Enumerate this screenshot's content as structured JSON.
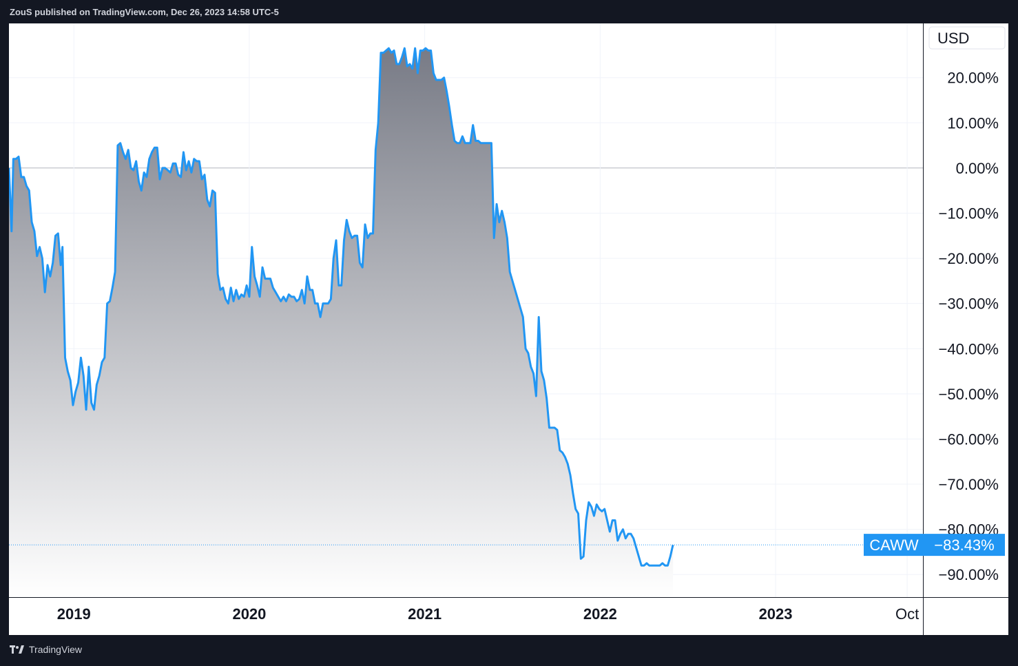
{
  "header": {
    "published_text": "ZouS published on TradingView.com, Dec 26, 2023 14:58 UTC-5"
  },
  "footer": {
    "brand": "TradingView",
    "logo_icon": "tradingview-logo-icon"
  },
  "colors": {
    "background": "#131722",
    "plot_bg": "#ffffff",
    "line": "#2196f3",
    "grid": "#f0f3fa",
    "zero_line": "#b2b5be",
    "label_bg": "#2196f3",
    "label_text": "#ffffff",
    "area_top": "#787b86",
    "area_bottom": "#ffffff"
  },
  "chart_data": {
    "type": "area",
    "title": "",
    "currency_label": "USD",
    "symbol": "CAWW",
    "last_value_label": "−83.43%",
    "last_value": -83.43,
    "ylim": [
      -95,
      32
    ],
    "y_ticks": [
      {
        "value": 20,
        "label": "20.00%"
      },
      {
        "value": 10,
        "label": "10.00%"
      },
      {
        "value": 0,
        "label": "0.00%"
      },
      {
        "value": -10,
        "label": "−10.00%"
      },
      {
        "value": -20,
        "label": "−20.00%"
      },
      {
        "value": -30,
        "label": "−30.00%"
      },
      {
        "value": -40,
        "label": "−40.00%"
      },
      {
        "value": -50,
        "label": "−50.00%"
      },
      {
        "value": -60,
        "label": "−60.00%"
      },
      {
        "value": -70,
        "label": "−70.00%"
      },
      {
        "value": -80,
        "label": "−80.00%"
      },
      {
        "value": -90,
        "label": "−90.00%"
      }
    ],
    "xlim": [
      2018.63,
      2023.84
    ],
    "x_ticks": [
      {
        "value": 2019.0,
        "label": "2019",
        "bold": true
      },
      {
        "value": 2020.0,
        "label": "2020",
        "bold": true
      },
      {
        "value": 2021.0,
        "label": "2021",
        "bold": true
      },
      {
        "value": 2022.0,
        "label": "2022",
        "bold": true
      },
      {
        "value": 2023.0,
        "label": "2023",
        "bold": true
      },
      {
        "value": 2023.75,
        "label": "Oct",
        "bold": false
      }
    ],
    "grid": true,
    "series": [
      {
        "points": [
          [
            2018.63,
            0
          ],
          [
            2018.645,
            -14
          ],
          [
            2018.655,
            2
          ],
          [
            2018.67,
            2
          ],
          [
            2018.685,
            2.5
          ],
          [
            2018.7,
            -2
          ],
          [
            2018.715,
            -2
          ],
          [
            2018.73,
            -4
          ],
          [
            2018.745,
            -5
          ],
          [
            2018.76,
            -12
          ],
          [
            2018.775,
            -14
          ],
          [
            2018.79,
            -19.5
          ],
          [
            2018.805,
            -17.5
          ],
          [
            2018.82,
            -20
          ],
          [
            2018.835,
            -27.5
          ],
          [
            2018.85,
            -21.5
          ],
          [
            2018.865,
            -24
          ],
          [
            2018.88,
            -21
          ],
          [
            2018.895,
            -15
          ],
          [
            2018.91,
            -14.5
          ],
          [
            2018.925,
            -21.5
          ],
          [
            2018.935,
            -17.5
          ],
          [
            2018.95,
            -42
          ],
          [
            2018.965,
            -45
          ],
          [
            2018.98,
            -47
          ],
          [
            2018.995,
            -52.5
          ],
          [
            2019.01,
            -49.5
          ],
          [
            2019.025,
            -47.5
          ],
          [
            2019.04,
            -42
          ],
          [
            2019.055,
            -46
          ],
          [
            2019.07,
            -53.5
          ],
          [
            2019.085,
            -44
          ],
          [
            2019.1,
            -52
          ],
          [
            2019.115,
            -53.5
          ],
          [
            2019.13,
            -48
          ],
          [
            2019.145,
            -46
          ],
          [
            2019.16,
            -43
          ],
          [
            2019.175,
            -42
          ],
          [
            2019.19,
            -30
          ],
          [
            2019.205,
            -29.5
          ],
          [
            2019.22,
            -26.5
          ],
          [
            2019.235,
            -23
          ],
          [
            2019.25,
            5
          ],
          [
            2019.265,
            5.5
          ],
          [
            2019.28,
            3.5
          ],
          [
            2019.295,
            2
          ],
          [
            2019.31,
            4
          ],
          [
            2019.325,
            0
          ],
          [
            2019.34,
            -0.5
          ],
          [
            2019.355,
            1.5
          ],
          [
            2019.37,
            -3
          ],
          [
            2019.385,
            -5
          ],
          [
            2019.4,
            -1
          ],
          [
            2019.415,
            -2
          ],
          [
            2019.43,
            2
          ],
          [
            2019.445,
            3.5
          ],
          [
            2019.46,
            4.5
          ],
          [
            2019.475,
            4.5
          ],
          [
            2019.49,
            -2.5
          ],
          [
            2019.505,
            0
          ],
          [
            2019.52,
            0
          ],
          [
            2019.535,
            -0.5
          ],
          [
            2019.55,
            -1
          ],
          [
            2019.565,
            1
          ],
          [
            2019.58,
            1
          ],
          [
            2019.595,
            -1.5
          ],
          [
            2019.61,
            -2
          ],
          [
            2019.625,
            3.5
          ],
          [
            2019.64,
            -0.5
          ],
          [
            2019.655,
            1.5
          ],
          [
            2019.67,
            -1
          ],
          [
            2019.685,
            2
          ],
          [
            2019.7,
            1.5
          ],
          [
            2019.715,
            1.5
          ],
          [
            2019.73,
            -2.5
          ],
          [
            2019.745,
            -1.5
          ],
          [
            2019.76,
            -7
          ],
          [
            2019.775,
            -8.5
          ],
          [
            2019.79,
            -5
          ],
          [
            2019.805,
            -5.5
          ],
          [
            2019.82,
            -23.5
          ],
          [
            2019.835,
            -27
          ],
          [
            2019.85,
            -26.5
          ],
          [
            2019.865,
            -29
          ],
          [
            2019.88,
            -30
          ],
          [
            2019.895,
            -26.5
          ],
          [
            2019.91,
            -29.5
          ],
          [
            2019.925,
            -27
          ],
          [
            2019.94,
            -29
          ],
          [
            2019.955,
            -28
          ],
          [
            2019.97,
            -28.5
          ],
          [
            2019.985,
            -26
          ],
          [
            2020.0,
            -28.5
          ],
          [
            2020.015,
            -17.5
          ],
          [
            2020.03,
            -24
          ],
          [
            2020.045,
            -26
          ],
          [
            2020.06,
            -28.5
          ],
          [
            2020.075,
            -22
          ],
          [
            2020.09,
            -24.5
          ],
          [
            2020.105,
            -24.5
          ],
          [
            2020.12,
            -24.5
          ],
          [
            2020.135,
            -26.5
          ],
          [
            2020.15,
            -27.5
          ],
          [
            2020.165,
            -28.5
          ],
          [
            2020.18,
            -29.5
          ],
          [
            2020.195,
            -28.5
          ],
          [
            2020.21,
            -29.5
          ],
          [
            2020.225,
            -28
          ],
          [
            2020.24,
            -28.5
          ],
          [
            2020.255,
            -28.5
          ],
          [
            2020.27,
            -29.5
          ],
          [
            2020.285,
            -29
          ],
          [
            2020.3,
            -27
          ],
          [
            2020.315,
            -30
          ],
          [
            2020.33,
            -24
          ],
          [
            2020.345,
            -27
          ],
          [
            2020.36,
            -27
          ],
          [
            2020.375,
            -30
          ],
          [
            2020.39,
            -30
          ],
          [
            2020.405,
            -33
          ],
          [
            2020.42,
            -30
          ],
          [
            2020.435,
            -30
          ],
          [
            2020.45,
            -30
          ],
          [
            2020.465,
            -29
          ],
          [
            2020.48,
            -20
          ],
          [
            2020.495,
            -16
          ],
          [
            2020.51,
            -26
          ],
          [
            2020.525,
            -26
          ],
          [
            2020.54,
            -16
          ],
          [
            2020.555,
            -11.5
          ],
          [
            2020.57,
            -14
          ],
          [
            2020.585,
            -15.5
          ],
          [
            2020.6,
            -15
          ],
          [
            2020.615,
            -15
          ],
          [
            2020.63,
            -21
          ],
          [
            2020.645,
            -22
          ],
          [
            2020.66,
            -12.5
          ],
          [
            2020.675,
            -15.5
          ],
          [
            2020.69,
            -14.5
          ],
          [
            2020.705,
            -14.5
          ],
          [
            2020.72,
            4
          ],
          [
            2020.735,
            10
          ],
          [
            2020.75,
            25.5
          ],
          [
            2020.765,
            25.5
          ],
          [
            2020.78,
            26
          ],
          [
            2020.795,
            26.5
          ],
          [
            2020.81,
            25.5
          ],
          [
            2020.825,
            26
          ],
          [
            2020.84,
            23
          ],
          [
            2020.855,
            23
          ],
          [
            2020.87,
            24.5
          ],
          [
            2020.885,
            26.5
          ],
          [
            2020.9,
            22.5
          ],
          [
            2020.915,
            23
          ],
          [
            2020.93,
            22
          ],
          [
            2020.945,
            26.5
          ],
          [
            2020.96,
            21
          ],
          [
            2020.975,
            26
          ],
          [
            2020.99,
            26
          ],
          [
            2021.005,
            26.5
          ],
          [
            2021.02,
            26
          ],
          [
            2021.035,
            26
          ],
          [
            2021.05,
            21
          ],
          [
            2021.065,
            19.5
          ],
          [
            2021.08,
            19.5
          ],
          [
            2021.095,
            19.5
          ],
          [
            2021.11,
            20
          ],
          [
            2021.125,
            17
          ],
          [
            2021.14,
            13.5
          ],
          [
            2021.155,
            9.5
          ],
          [
            2021.17,
            6
          ],
          [
            2021.185,
            5.5
          ],
          [
            2021.2,
            5.5
          ],
          [
            2021.215,
            7
          ],
          [
            2021.23,
            5.5
          ],
          [
            2021.245,
            5.5
          ],
          [
            2021.26,
            5.5
          ],
          [
            2021.275,
            9.5
          ],
          [
            2021.29,
            6
          ],
          [
            2021.305,
            6
          ],
          [
            2021.32,
            5.5
          ],
          [
            2021.335,
            5.5
          ],
          [
            2021.35,
            5.5
          ],
          [
            2021.365,
            5.5
          ],
          [
            2021.38,
            5.5
          ],
          [
            2021.395,
            -15.5
          ],
          [
            2021.41,
            -8
          ],
          [
            2021.425,
            -12
          ],
          [
            2021.44,
            -9.5
          ],
          [
            2021.455,
            -12
          ],
          [
            2021.47,
            -15.5
          ],
          [
            2021.485,
            -23
          ],
          [
            2021.5,
            -25
          ],
          [
            2021.515,
            -27
          ],
          [
            2021.53,
            -29
          ],
          [
            2021.545,
            -31
          ],
          [
            2021.56,
            -33
          ],
          [
            2021.575,
            -40
          ],
          [
            2021.59,
            -41
          ],
          [
            2021.605,
            -44
          ],
          [
            2021.62,
            -45.5
          ],
          [
            2021.635,
            -50.5
          ],
          [
            2021.65,
            -33
          ],
          [
            2021.665,
            -45
          ],
          [
            2021.68,
            -47
          ],
          [
            2021.695,
            -51
          ],
          [
            2021.71,
            -57.5
          ],
          [
            2021.725,
            -57.5
          ],
          [
            2021.74,
            -57.5
          ],
          [
            2021.755,
            -58
          ],
          [
            2021.77,
            -62.5
          ],
          [
            2021.785,
            -63
          ],
          [
            2021.8,
            -64
          ],
          [
            2021.815,
            -65.5
          ],
          [
            2021.83,
            -68
          ],
          [
            2021.845,
            -72
          ],
          [
            2021.86,
            -75.5
          ],
          [
            2021.875,
            -76.5
          ],
          [
            2021.89,
            -86.5
          ],
          [
            2021.905,
            -86
          ],
          [
            2021.92,
            -78
          ],
          [
            2021.935,
            -74
          ],
          [
            2021.95,
            -75
          ],
          [
            2021.965,
            -77
          ],
          [
            2021.98,
            -74.5
          ],
          [
            2021.995,
            -75.5
          ],
          [
            2022.01,
            -76
          ],
          [
            2022.025,
            -75.5
          ],
          [
            2022.04,
            -78
          ],
          [
            2022.055,
            -80.5
          ],
          [
            2022.07,
            -78
          ],
          [
            2022.085,
            -78
          ],
          [
            2022.1,
            -82.5
          ],
          [
            2022.115,
            -81
          ],
          [
            2022.13,
            -80
          ],
          [
            2022.145,
            -82
          ],
          [
            2022.16,
            -81
          ],
          [
            2022.175,
            -81
          ],
          [
            2022.19,
            -82
          ],
          [
            2022.205,
            -84
          ],
          [
            2022.22,
            -86
          ],
          [
            2022.235,
            -88
          ],
          [
            2022.25,
            -88
          ],
          [
            2022.265,
            -87.5
          ],
          [
            2022.28,
            -88
          ],
          [
            2022.295,
            -88
          ],
          [
            2022.31,
            -88
          ],
          [
            2022.325,
            -88
          ],
          [
            2022.34,
            -88
          ],
          [
            2022.355,
            -87.5
          ],
          [
            2022.37,
            -88
          ],
          [
            2022.385,
            -88
          ],
          [
            2022.4,
            -86
          ],
          [
            2022.415,
            -83.43
          ]
        ]
      }
    ]
  }
}
